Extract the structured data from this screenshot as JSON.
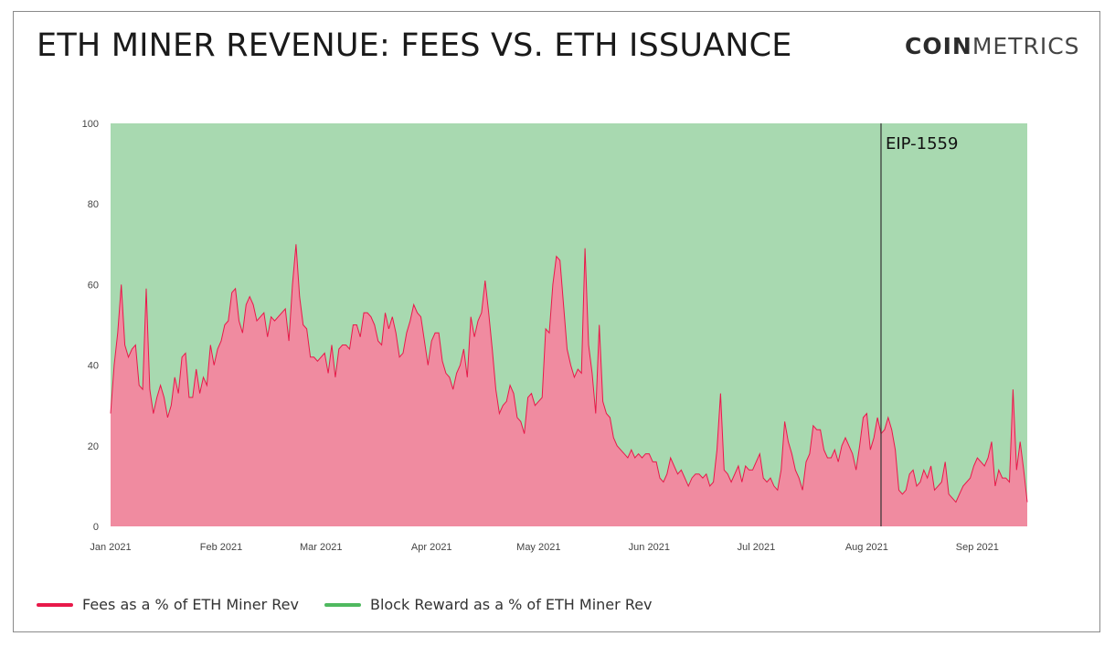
{
  "header": {
    "title": "ETH MINER REVENUE: FEES VS. ETH ISSUANCE",
    "logo_bold": "COIN",
    "logo_light": "METRICS"
  },
  "colors": {
    "fees_line": "#e8194a",
    "fees_fill": "#f08ba0",
    "reward_line": "#4fb95f",
    "reward_fill": "#a8d9b0",
    "annotation_line": "#333333"
  },
  "chart_data": {
    "type": "area",
    "ylim": [
      0,
      100
    ],
    "yticks": [
      "0",
      "20",
      "40",
      "60",
      "80",
      "100"
    ],
    "x_start": "2021-01-01",
    "x_end": "2021-09-15",
    "xticks": [
      {
        "label": "Jan 2021",
        "date": "2021-01-01"
      },
      {
        "label": "Feb 2021",
        "date": "2021-02-01"
      },
      {
        "label": "Mar 2021",
        "date": "2021-03-01"
      },
      {
        "label": "Apr 2021",
        "date": "2021-04-01"
      },
      {
        "label": "May 2021",
        "date": "2021-05-01"
      },
      {
        "label": "Jun 2021",
        "date": "2021-06-01"
      },
      {
        "label": "Jul 2021",
        "date": "2021-07-01"
      },
      {
        "label": "Aug 2021",
        "date": "2021-08-01"
      },
      {
        "label": "Sep 2021",
        "date": "2021-09-01"
      }
    ],
    "annotation": {
      "label": "EIP-1559",
      "date": "2021-08-05"
    },
    "series": [
      {
        "name": "Fees as a % of ETH Miner Rev",
        "points": [
          [
            "2021-01-01",
            28
          ],
          [
            "2021-01-02",
            40
          ],
          [
            "2021-01-03",
            48
          ],
          [
            "2021-01-04",
            60
          ],
          [
            "2021-01-05",
            45
          ],
          [
            "2021-01-06",
            42
          ],
          [
            "2021-01-07",
            44
          ],
          [
            "2021-01-08",
            45
          ],
          [
            "2021-01-09",
            35
          ],
          [
            "2021-01-10",
            34
          ],
          [
            "2021-01-11",
            59
          ],
          [
            "2021-01-12",
            34
          ],
          [
            "2021-01-13",
            28
          ],
          [
            "2021-01-14",
            32
          ],
          [
            "2021-01-15",
            35
          ],
          [
            "2021-01-16",
            32
          ],
          [
            "2021-01-17",
            27
          ],
          [
            "2021-01-18",
            30
          ],
          [
            "2021-01-19",
            37
          ],
          [
            "2021-01-20",
            33
          ],
          [
            "2021-01-21",
            42
          ],
          [
            "2021-01-22",
            43
          ],
          [
            "2021-01-23",
            32
          ],
          [
            "2021-01-24",
            32
          ],
          [
            "2021-01-25",
            39
          ],
          [
            "2021-01-26",
            33
          ],
          [
            "2021-01-27",
            37
          ],
          [
            "2021-01-28",
            35
          ],
          [
            "2021-01-29",
            45
          ],
          [
            "2021-01-30",
            40
          ],
          [
            "2021-01-31",
            44
          ],
          [
            "2021-02-01",
            46
          ],
          [
            "2021-02-02",
            50
          ],
          [
            "2021-02-03",
            51
          ],
          [
            "2021-02-04",
            58
          ],
          [
            "2021-02-05",
            59
          ],
          [
            "2021-02-06",
            51
          ],
          [
            "2021-02-07",
            48
          ],
          [
            "2021-02-08",
            55
          ],
          [
            "2021-02-09",
            57
          ],
          [
            "2021-02-10",
            55
          ],
          [
            "2021-02-11",
            51
          ],
          [
            "2021-02-12",
            52
          ],
          [
            "2021-02-13",
            53
          ],
          [
            "2021-02-14",
            47
          ],
          [
            "2021-02-15",
            52
          ],
          [
            "2021-02-16",
            51
          ],
          [
            "2021-02-17",
            52
          ],
          [
            "2021-02-18",
            53
          ],
          [
            "2021-02-19",
            54
          ],
          [
            "2021-02-20",
            46
          ],
          [
            "2021-02-21",
            60
          ],
          [
            "2021-02-22",
            70
          ],
          [
            "2021-02-23",
            57
          ],
          [
            "2021-02-24",
            50
          ],
          [
            "2021-02-25",
            49
          ],
          [
            "2021-02-26",
            42
          ],
          [
            "2021-02-27",
            42
          ],
          [
            "2021-02-28",
            41
          ],
          [
            "2021-03-01",
            42
          ],
          [
            "2021-03-02",
            43
          ],
          [
            "2021-03-03",
            38
          ],
          [
            "2021-03-04",
            45
          ],
          [
            "2021-03-05",
            37
          ],
          [
            "2021-03-06",
            44
          ],
          [
            "2021-03-07",
            45
          ],
          [
            "2021-03-08",
            45
          ],
          [
            "2021-03-09",
            44
          ],
          [
            "2021-03-10",
            50
          ],
          [
            "2021-03-11",
            50
          ],
          [
            "2021-03-12",
            47
          ],
          [
            "2021-03-13",
            53
          ],
          [
            "2021-03-14",
            53
          ],
          [
            "2021-03-15",
            52
          ],
          [
            "2021-03-16",
            50
          ],
          [
            "2021-03-17",
            46
          ],
          [
            "2021-03-18",
            45
          ],
          [
            "2021-03-19",
            53
          ],
          [
            "2021-03-20",
            49
          ],
          [
            "2021-03-21",
            52
          ],
          [
            "2021-03-22",
            48
          ],
          [
            "2021-03-23",
            42
          ],
          [
            "2021-03-24",
            43
          ],
          [
            "2021-03-25",
            48
          ],
          [
            "2021-03-26",
            51
          ],
          [
            "2021-03-27",
            55
          ],
          [
            "2021-03-28",
            53
          ],
          [
            "2021-03-29",
            52
          ],
          [
            "2021-03-30",
            46
          ],
          [
            "2021-03-31",
            40
          ],
          [
            "2021-04-01",
            46
          ],
          [
            "2021-04-02",
            48
          ],
          [
            "2021-04-03",
            48
          ],
          [
            "2021-04-04",
            41
          ],
          [
            "2021-04-05",
            38
          ],
          [
            "2021-04-06",
            37
          ],
          [
            "2021-04-07",
            34
          ],
          [
            "2021-04-08",
            38
          ],
          [
            "2021-04-09",
            40
          ],
          [
            "2021-04-10",
            44
          ],
          [
            "2021-04-11",
            37
          ],
          [
            "2021-04-12",
            52
          ],
          [
            "2021-04-13",
            47
          ],
          [
            "2021-04-14",
            51
          ],
          [
            "2021-04-15",
            53
          ],
          [
            "2021-04-16",
            61
          ],
          [
            "2021-04-17",
            53
          ],
          [
            "2021-04-18",
            44
          ],
          [
            "2021-04-19",
            34
          ],
          [
            "2021-04-20",
            28
          ],
          [
            "2021-04-21",
            30
          ],
          [
            "2021-04-22",
            31
          ],
          [
            "2021-04-23",
            35
          ],
          [
            "2021-04-24",
            33
          ],
          [
            "2021-04-25",
            27
          ],
          [
            "2021-04-26",
            26
          ],
          [
            "2021-04-27",
            23
          ],
          [
            "2021-04-28",
            32
          ],
          [
            "2021-04-29",
            33
          ],
          [
            "2021-04-30",
            30
          ],
          [
            "2021-05-01",
            31
          ],
          [
            "2021-05-02",
            32
          ],
          [
            "2021-05-03",
            49
          ],
          [
            "2021-05-04",
            48
          ],
          [
            "2021-05-05",
            60
          ],
          [
            "2021-05-06",
            67
          ],
          [
            "2021-05-07",
            66
          ],
          [
            "2021-05-08",
            55
          ],
          [
            "2021-05-09",
            44
          ],
          [
            "2021-05-10",
            40
          ],
          [
            "2021-05-11",
            37
          ],
          [
            "2021-05-12",
            39
          ],
          [
            "2021-05-13",
            38
          ],
          [
            "2021-05-14",
            69
          ],
          [
            "2021-05-15",
            45
          ],
          [
            "2021-05-16",
            38
          ],
          [
            "2021-05-17",
            28
          ],
          [
            "2021-05-18",
            50
          ],
          [
            "2021-05-19",
            31
          ],
          [
            "2021-05-20",
            28
          ],
          [
            "2021-05-21",
            27
          ],
          [
            "2021-05-22",
            22
          ],
          [
            "2021-05-23",
            20
          ],
          [
            "2021-05-24",
            19
          ],
          [
            "2021-05-25",
            18
          ],
          [
            "2021-05-26",
            17
          ],
          [
            "2021-05-27",
            19
          ],
          [
            "2021-05-28",
            17
          ],
          [
            "2021-05-29",
            18
          ],
          [
            "2021-05-30",
            17
          ],
          [
            "2021-05-31",
            18
          ],
          [
            "2021-06-01",
            18
          ],
          [
            "2021-06-02",
            16
          ],
          [
            "2021-06-03",
            16
          ],
          [
            "2021-06-04",
            12
          ],
          [
            "2021-06-05",
            11
          ],
          [
            "2021-06-06",
            13
          ],
          [
            "2021-06-07",
            17
          ],
          [
            "2021-06-08",
            15
          ],
          [
            "2021-06-09",
            13
          ],
          [
            "2021-06-10",
            14
          ],
          [
            "2021-06-11",
            12
          ],
          [
            "2021-06-12",
            10
          ],
          [
            "2021-06-13",
            12
          ],
          [
            "2021-06-14",
            13
          ],
          [
            "2021-06-15",
            13
          ],
          [
            "2021-06-16",
            12
          ],
          [
            "2021-06-17",
            13
          ],
          [
            "2021-06-18",
            10
          ],
          [
            "2021-06-19",
            11
          ],
          [
            "2021-06-20",
            19
          ],
          [
            "2021-06-21",
            33
          ],
          [
            "2021-06-22",
            14
          ],
          [
            "2021-06-23",
            13
          ],
          [
            "2021-06-24",
            11
          ],
          [
            "2021-06-25",
            13
          ],
          [
            "2021-06-26",
            15
          ],
          [
            "2021-06-27",
            11
          ],
          [
            "2021-06-28",
            15
          ],
          [
            "2021-06-29",
            14
          ],
          [
            "2021-06-30",
            14
          ],
          [
            "2021-07-01",
            16
          ],
          [
            "2021-07-02",
            18
          ],
          [
            "2021-07-03",
            12
          ],
          [
            "2021-07-04",
            11
          ],
          [
            "2021-07-05",
            12
          ],
          [
            "2021-07-06",
            10
          ],
          [
            "2021-07-07",
            9
          ],
          [
            "2021-07-08",
            14
          ],
          [
            "2021-07-09",
            26
          ],
          [
            "2021-07-10",
            21
          ],
          [
            "2021-07-11",
            18
          ],
          [
            "2021-07-12",
            14
          ],
          [
            "2021-07-13",
            12
          ],
          [
            "2021-07-14",
            9
          ],
          [
            "2021-07-15",
            16
          ],
          [
            "2021-07-16",
            18
          ],
          [
            "2021-07-17",
            25
          ],
          [
            "2021-07-18",
            24
          ],
          [
            "2021-07-19",
            24
          ],
          [
            "2021-07-20",
            19
          ],
          [
            "2021-07-21",
            17
          ],
          [
            "2021-07-22",
            17
          ],
          [
            "2021-07-23",
            19
          ],
          [
            "2021-07-24",
            16
          ],
          [
            "2021-07-25",
            20
          ],
          [
            "2021-07-26",
            22
          ],
          [
            "2021-07-27",
            20
          ],
          [
            "2021-07-28",
            18
          ],
          [
            "2021-07-29",
            14
          ],
          [
            "2021-07-30",
            20
          ],
          [
            "2021-07-31",
            27
          ],
          [
            "2021-08-01",
            28
          ],
          [
            "2021-08-02",
            19
          ],
          [
            "2021-08-03",
            22
          ],
          [
            "2021-08-04",
            27
          ],
          [
            "2021-08-05",
            23
          ],
          [
            "2021-08-06",
            24
          ],
          [
            "2021-08-07",
            27
          ],
          [
            "2021-08-08",
            24
          ],
          [
            "2021-08-09",
            19
          ],
          [
            "2021-08-10",
            9
          ],
          [
            "2021-08-11",
            8
          ],
          [
            "2021-08-12",
            9
          ],
          [
            "2021-08-13",
            13
          ],
          [
            "2021-08-14",
            14
          ],
          [
            "2021-08-15",
            10
          ],
          [
            "2021-08-16",
            11
          ],
          [
            "2021-08-17",
            14
          ],
          [
            "2021-08-18",
            12
          ],
          [
            "2021-08-19",
            15
          ],
          [
            "2021-08-20",
            9
          ],
          [
            "2021-08-21",
            10
          ],
          [
            "2021-08-22",
            11
          ],
          [
            "2021-08-23",
            16
          ],
          [
            "2021-08-24",
            8
          ],
          [
            "2021-08-25",
            7
          ],
          [
            "2021-08-26",
            6
          ],
          [
            "2021-08-27",
            8
          ],
          [
            "2021-08-28",
            10
          ],
          [
            "2021-08-29",
            11
          ],
          [
            "2021-08-30",
            12
          ],
          [
            "2021-08-31",
            15
          ],
          [
            "2021-09-01",
            17
          ],
          [
            "2021-09-02",
            16
          ],
          [
            "2021-09-03",
            15
          ],
          [
            "2021-09-04",
            17
          ],
          [
            "2021-09-05",
            21
          ],
          [
            "2021-09-06",
            10
          ],
          [
            "2021-09-07",
            14
          ],
          [
            "2021-09-08",
            12
          ],
          [
            "2021-09-09",
            12
          ],
          [
            "2021-09-10",
            11
          ],
          [
            "2021-09-11",
            34
          ],
          [
            "2021-09-12",
            14
          ],
          [
            "2021-09-13",
            21
          ],
          [
            "2021-09-14",
            14
          ],
          [
            "2021-09-15",
            6
          ]
        ]
      },
      {
        "name": "Block Reward as a % of ETH Miner Rev",
        "complement_of": "Fees as a % of ETH Miner Rev",
        "total": 100
      }
    ],
    "legend_position": "bottom-left",
    "grid": false
  }
}
